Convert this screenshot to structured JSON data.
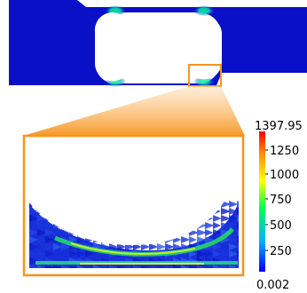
{
  "colorbar": {
    "max_label": "1397.95",
    "tick_labels": [
      "1250",
      "1000",
      "750",
      "500",
      "250"
    ],
    "min_label": "0.002",
    "range": [
      0.002,
      1397.95
    ],
    "stops": [
      "#0000ff",
      "#00b2ff",
      "#00ff55",
      "#ffff00",
      "#ff8800",
      "#ff0000"
    ]
  },
  "colors": {
    "field_low": "#0a10c8",
    "highlight_box": "#f7941d",
    "callout_fill": "#fbc98c"
  }
}
